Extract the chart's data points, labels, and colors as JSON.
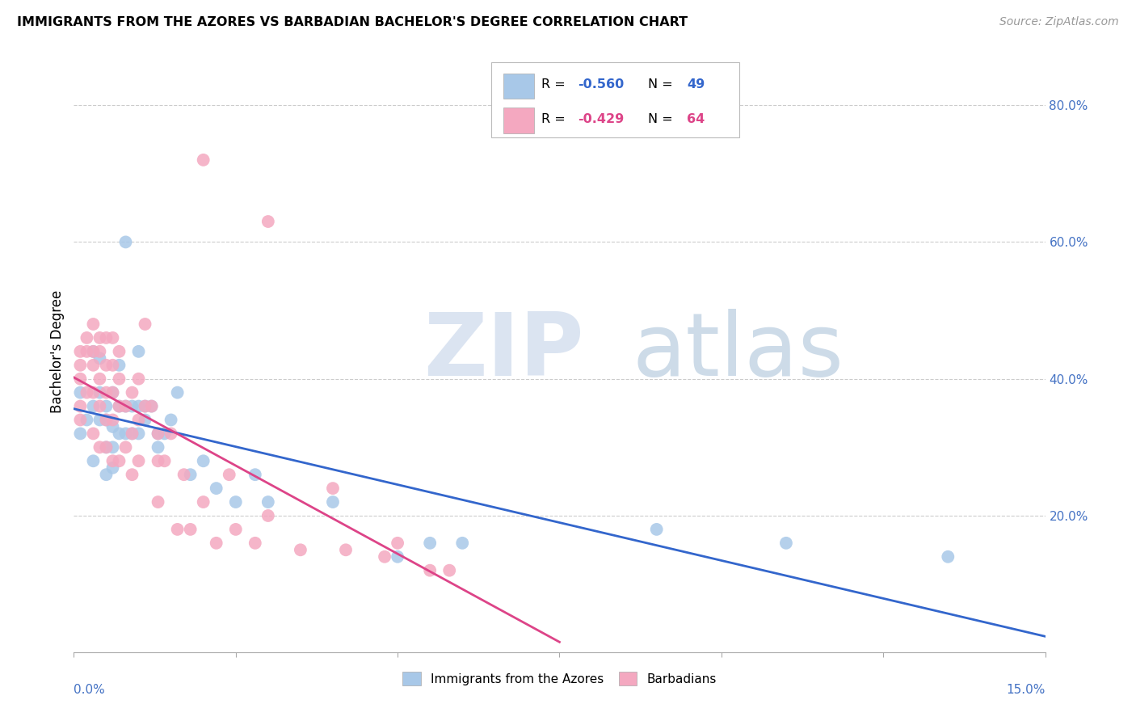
{
  "title": "IMMIGRANTS FROM THE AZORES VS BARBADIAN BACHELOR'S DEGREE CORRELATION CHART",
  "source": "Source: ZipAtlas.com",
  "ylabel": "Bachelor's Degree",
  "blue_color": "#a8c8e8",
  "pink_color": "#f4a8c0",
  "blue_line_color": "#3366cc",
  "pink_line_color": "#dd4488",
  "legend_label_blue": "Immigrants from the Azores",
  "legend_label_pink": "Barbadians",
  "right_ytick_vals": [
    0.0,
    0.2,
    0.4,
    0.6,
    0.8
  ],
  "right_yticklabels": [
    "",
    "20.0%",
    "40.0%",
    "60.0%",
    "80.0%"
  ],
  "xlim": [
    0.0,
    0.15
  ],
  "ylim": [
    0.0,
    0.88
  ],
  "blue_x": [
    0.001,
    0.001,
    0.002,
    0.003,
    0.003,
    0.003,
    0.004,
    0.004,
    0.004,
    0.005,
    0.005,
    0.005,
    0.005,
    0.006,
    0.006,
    0.006,
    0.006,
    0.007,
    0.007,
    0.007,
    0.008,
    0.008,
    0.008,
    0.009,
    0.009,
    0.01,
    0.01,
    0.01,
    0.011,
    0.011,
    0.012,
    0.013,
    0.013,
    0.014,
    0.015,
    0.016,
    0.018,
    0.02,
    0.022,
    0.025,
    0.028,
    0.03,
    0.04,
    0.05,
    0.055,
    0.06,
    0.09,
    0.11,
    0.135
  ],
  "blue_y": [
    0.38,
    0.32,
    0.34,
    0.44,
    0.36,
    0.28,
    0.43,
    0.38,
    0.34,
    0.36,
    0.34,
    0.3,
    0.26,
    0.38,
    0.33,
    0.3,
    0.27,
    0.42,
    0.36,
    0.32,
    0.6,
    0.36,
    0.32,
    0.36,
    0.32,
    0.36,
    0.32,
    0.44,
    0.36,
    0.34,
    0.36,
    0.32,
    0.3,
    0.32,
    0.34,
    0.38,
    0.26,
    0.28,
    0.24,
    0.22,
    0.26,
    0.22,
    0.22,
    0.14,
    0.16,
    0.16,
    0.18,
    0.16,
    0.14
  ],
  "pink_x": [
    0.001,
    0.001,
    0.001,
    0.001,
    0.001,
    0.002,
    0.002,
    0.002,
    0.003,
    0.003,
    0.003,
    0.003,
    0.003,
    0.004,
    0.004,
    0.004,
    0.004,
    0.004,
    0.005,
    0.005,
    0.005,
    0.005,
    0.005,
    0.006,
    0.006,
    0.006,
    0.006,
    0.006,
    0.007,
    0.007,
    0.007,
    0.007,
    0.008,
    0.008,
    0.009,
    0.009,
    0.009,
    0.01,
    0.01,
    0.01,
    0.011,
    0.011,
    0.012,
    0.013,
    0.013,
    0.013,
    0.014,
    0.015,
    0.016,
    0.017,
    0.018,
    0.02,
    0.022,
    0.024,
    0.025,
    0.028,
    0.03,
    0.035,
    0.04,
    0.042,
    0.048,
    0.05,
    0.055,
    0.058,
    0.02,
    0.03
  ],
  "pink_y": [
    0.44,
    0.42,
    0.4,
    0.36,
    0.34,
    0.46,
    0.44,
    0.38,
    0.48,
    0.44,
    0.42,
    0.38,
    0.32,
    0.46,
    0.44,
    0.4,
    0.36,
    0.3,
    0.46,
    0.42,
    0.38,
    0.34,
    0.3,
    0.46,
    0.42,
    0.38,
    0.34,
    0.28,
    0.44,
    0.4,
    0.36,
    0.28,
    0.36,
    0.3,
    0.38,
    0.32,
    0.26,
    0.4,
    0.34,
    0.28,
    0.48,
    0.36,
    0.36,
    0.32,
    0.28,
    0.22,
    0.28,
    0.32,
    0.18,
    0.26,
    0.18,
    0.22,
    0.16,
    0.26,
    0.18,
    0.16,
    0.2,
    0.15,
    0.24,
    0.15,
    0.14,
    0.16,
    0.12,
    0.12,
    0.72,
    0.63
  ]
}
